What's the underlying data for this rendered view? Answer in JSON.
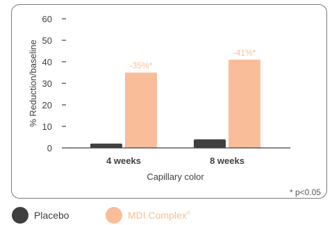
{
  "chart_data": {
    "type": "bar",
    "categories": [
      "4 weeks",
      "8 weeks"
    ],
    "series": [
      {
        "name": "Placebo",
        "values": [
          2,
          4
        ],
        "color": "#3f3f3f"
      },
      {
        "name": "MDI Complex®",
        "values": [
          35,
          41
        ],
        "color": "#f9bd99"
      }
    ],
    "data_labels": [
      "-35%*",
      "-41%*"
    ],
    "xlabel": "Capillary color",
    "ylabel": "% Reduction/baseline",
    "ylim": [
      0,
      60
    ],
    "yticks": [
      0,
      10,
      20,
      30,
      40,
      50,
      60
    ],
    "grid": false,
    "legend_position": "bottom-left",
    "footnote": "* p<0.05",
    "label_color": "#f9bd99",
    "text_color": "#3f3f3f"
  },
  "legend": {
    "placebo_label": "Placebo",
    "mdi_label": "MDI Complex",
    "mdi_mark": "®"
  }
}
